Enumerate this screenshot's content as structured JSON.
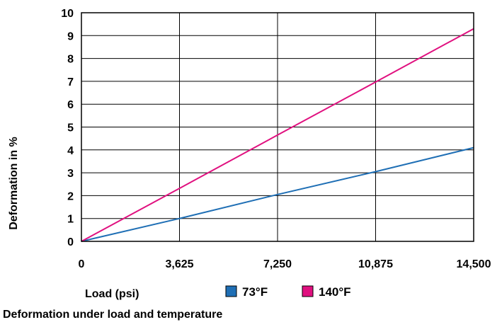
{
  "chart_data": {
    "type": "line",
    "caption": "Deformation under load and temperature",
    "xlabel": "Load (psi)",
    "ylabel": "Deformation in %",
    "xlim": [
      0,
      14500
    ],
    "ylim": [
      0,
      10
    ],
    "x_ticks": [
      "0",
      "3,625",
      "7,250",
      "10,875",
      "14,500"
    ],
    "x_tick_values": [
      0,
      3625,
      7250,
      10875,
      14500
    ],
    "y_ticks": [
      "0",
      "1",
      "2",
      "3",
      "4",
      "5",
      "6",
      "7",
      "8",
      "9",
      "10"
    ],
    "grid": true,
    "legend_position": "bottom",
    "series": [
      {
        "name": "73°F",
        "color": "#1f6fb5",
        "x": [
          0,
          3625,
          7250,
          10875,
          14500
        ],
        "y": [
          0,
          1.0,
          2.05,
          3.05,
          4.1
        ]
      },
      {
        "name": "140°F",
        "color": "#e0107f",
        "x": [
          0,
          3625,
          7250,
          10875,
          14500
        ],
        "y": [
          0,
          2.32,
          4.65,
          6.97,
          9.3
        ]
      }
    ]
  }
}
